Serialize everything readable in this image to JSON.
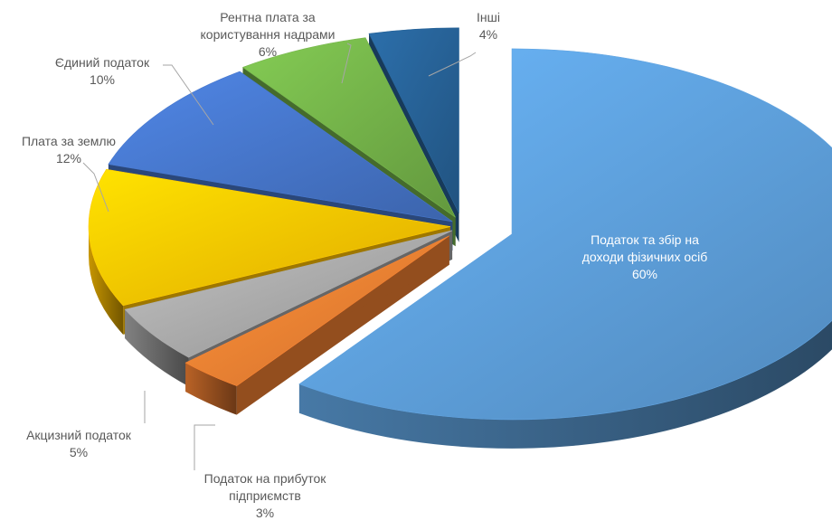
{
  "colors": {
    "income": "#5b9bd5",
    "profit": "#ed7d31",
    "excise": "#a5a5a5",
    "land": "#ffc000",
    "single": "#4472c4",
    "rent": "#70ad47",
    "other": "#255e91",
    "leader": "#a6a6a6",
    "label_text": "#595959"
  },
  "chart_data": {
    "type": "pie",
    "title": "",
    "variant": "3d-exploded",
    "slices": [
      {
        "key": "income",
        "label_lines": [
          "Податок та збір на",
          "доходи фізичних осіб"
        ],
        "pct_text": "60%",
        "value": 60
      },
      {
        "key": "profit",
        "label_lines": [
          "Податок на прибуток",
          "підприємств"
        ],
        "pct_text": "3%",
        "value": 3
      },
      {
        "key": "excise",
        "label_lines": [
          "Акцизний податок"
        ],
        "pct_text": "5%",
        "value": 5
      },
      {
        "key": "land",
        "label_lines": [
          "Плата за землю"
        ],
        "pct_text": "12%",
        "value": 12
      },
      {
        "key": "single",
        "label_lines": [
          "Єдиний податок"
        ],
        "pct_text": "10%",
        "value": 10
      },
      {
        "key": "rent",
        "label_lines": [
          "Рентна плата за",
          "користування надрами"
        ],
        "pct_text": "6%",
        "value": 6
      },
      {
        "key": "other",
        "label_lines": [
          "Інші"
        ],
        "pct_text": "4%",
        "value": 4
      }
    ]
  }
}
